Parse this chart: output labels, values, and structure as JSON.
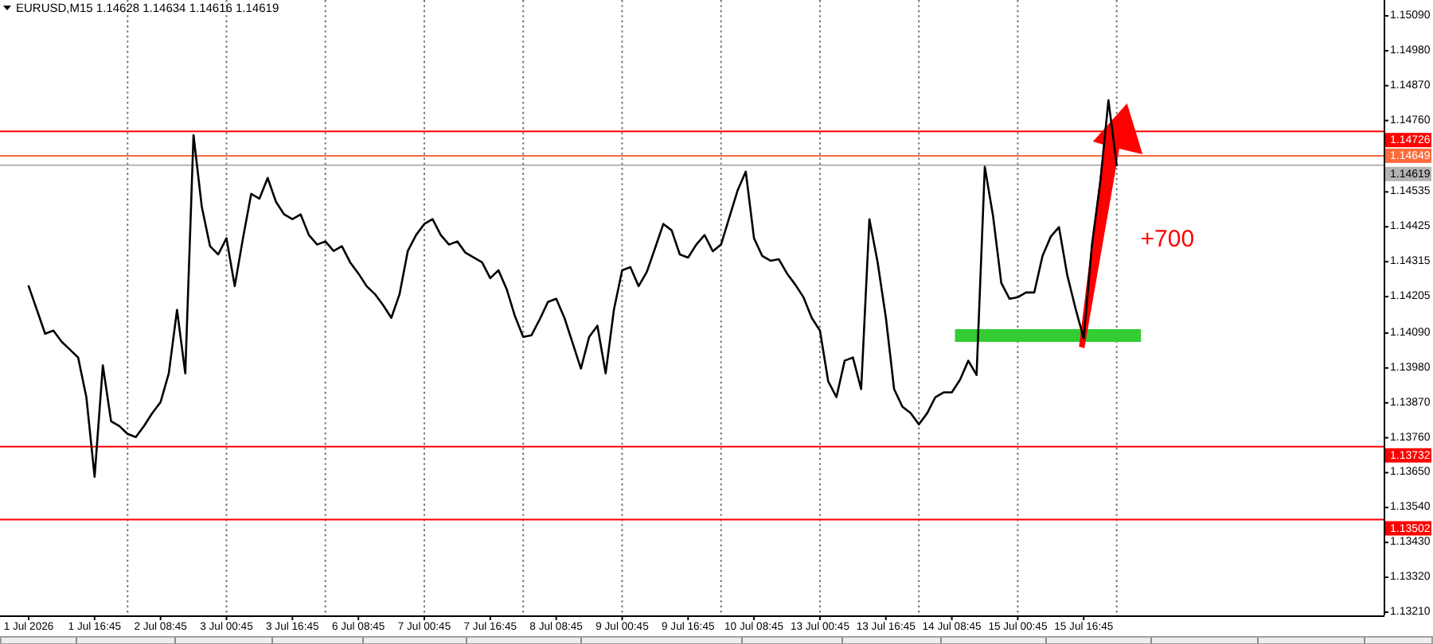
{
  "chart_data": {
    "type": "line",
    "title": "EURUSD,M15 1.14628 1.14634 1.14616 1.14619",
    "categories": [
      "1 Jul 2026",
      null,
      null,
      null,
      null,
      null,
      null,
      null,
      "1 Jul 16:45",
      null,
      null,
      null,
      null,
      null,
      null,
      null,
      "2 Jul 08:45",
      null,
      null,
      null,
      null,
      null,
      null,
      null,
      "3 Jul 00:45",
      null,
      null,
      null,
      null,
      null,
      null,
      null,
      "3 Jul 16:45",
      null,
      null,
      null,
      null,
      null,
      null,
      null,
      "6 Jul 08:45",
      null,
      null,
      null,
      null,
      null,
      null,
      null,
      "7 Jul 00:45",
      null,
      null,
      null,
      null,
      null,
      null,
      null,
      "7 Jul 16:45",
      null,
      null,
      null,
      null,
      null,
      null,
      null,
      "8 Jul 08:45",
      null,
      null,
      null,
      null,
      null,
      null,
      null,
      "9 Jul 00:45",
      null,
      null,
      null,
      null,
      null,
      null,
      null,
      "9 Jul 16:45",
      null,
      null,
      null,
      null,
      null,
      null,
      null,
      "10 Jul 08:45",
      null,
      null,
      null,
      null,
      null,
      null,
      null,
      "13 Jul 00:45",
      null,
      null,
      null,
      null,
      null,
      null,
      null,
      "13 Jul 16:45",
      null,
      null,
      null,
      null,
      null,
      null,
      null,
      "14 Jul 08:45",
      null,
      null,
      null,
      null,
      null,
      null,
      null,
      "15 Jul 00:45",
      null,
      null,
      null,
      null,
      null,
      null,
      null,
      "15 Jul 16:45",
      null,
      null,
      null,
      null,
      null,
      null,
      null,
      null,
      null,
      null,
      null,
      null,
      null,
      null,
      null,
      null,
      null,
      null,
      null,
      null,
      null,
      null,
      null,
      null,
      null,
      null,
      null,
      null,
      null,
      null,
      null,
      null,
      null,
      null,
      null,
      null
    ],
    "ylim": [
      1.132,
      1.1514
    ],
    "yticks": [
      {
        "value": 1.1509,
        "label": "1.15090"
      },
      {
        "value": 1.1498,
        "label": "1.14980"
      },
      {
        "value": 1.1487,
        "label": "1.14870"
      },
      {
        "value": 1.1476,
        "label": "1.14760"
      },
      {
        "value": 1.14535,
        "label": "1.14535"
      },
      {
        "value": 1.14425,
        "label": "1.14425"
      },
      {
        "value": 1.14315,
        "label": "1.14315"
      },
      {
        "value": 1.14205,
        "label": "1.14205"
      },
      {
        "value": 1.1409,
        "label": "1.14090"
      },
      {
        "value": 1.1398,
        "label": "1.13980"
      },
      {
        "value": 1.1387,
        "label": "1.13870"
      },
      {
        "value": 1.1376,
        "label": "1.13760"
      },
      {
        "value": 1.1365,
        "label": "1.13650"
      },
      {
        "value": 1.1354,
        "label": "1.13540"
      },
      {
        "value": 1.1343,
        "label": "1.13430"
      },
      {
        "value": 1.1332,
        "label": "1.13320"
      },
      {
        "value": 1.1321,
        "label": "1.13210"
      }
    ],
    "series": [
      {
        "color": "#000000",
        "values": [
          1.14238,
          1.14163,
          1.14088,
          1.14098,
          1.14063,
          1.14038,
          1.14013,
          1.13888,
          1.13637,
          1.13988,
          1.13812,
          1.13797,
          1.13772,
          1.13762,
          1.13797,
          1.13838,
          1.13872,
          1.13963,
          1.14163,
          1.13963,
          1.14714,
          1.14489,
          1.14364,
          1.14338,
          1.14389,
          1.14238,
          1.14389,
          1.14529,
          1.14514,
          1.14579,
          1.14504,
          1.14464,
          1.14449,
          1.14464,
          1.14399,
          1.14369,
          1.14379,
          1.14349,
          1.14364,
          1.14313,
          1.14278,
          1.14238,
          1.14213,
          1.14178,
          1.14138,
          1.14213,
          1.14349,
          1.14399,
          1.14434,
          1.14449,
          1.14399,
          1.14369,
          1.14379,
          1.14343,
          1.14328,
          1.14313,
          1.14263,
          1.14288,
          1.14228,
          1.14143,
          1.14078,
          1.14083,
          1.14133,
          1.14188,
          1.14198,
          1.14138,
          1.14058,
          1.13978,
          1.14078,
          1.14113,
          1.13963,
          1.14163,
          1.14288,
          1.14298,
          1.14238,
          1.14283,
          1.14358,
          1.14434,
          1.14414,
          1.14338,
          1.14328,
          1.14369,
          1.14399,
          1.14348,
          1.14369,
          1.14454,
          1.14539,
          1.14599,
          1.14389,
          1.14333,
          1.14318,
          1.14323,
          1.14278,
          1.14243,
          1.14203,
          1.14138,
          1.14098,
          1.13938,
          1.13888,
          1.14003,
          1.14013,
          1.13913,
          1.14449,
          1.14313,
          1.14138,
          1.13913,
          1.13858,
          1.13838,
          1.13802,
          1.13837,
          1.13888,
          1.13903,
          1.13903,
          1.13943,
          1.14003,
          1.13958,
          1.14614,
          1.14459,
          1.14248,
          1.14198,
          1.14203,
          1.14218,
          1.14218,
          1.14333,
          1.14394,
          1.14424,
          1.14273,
          1.14168,
          1.14073,
          1.14369,
          1.14564,
          1.14824,
          1.14619,
          null,
          null,
          null,
          null,
          null,
          null,
          null,
          null,
          null,
          null,
          null,
          null,
          null,
          null,
          null,
          null,
          null,
          null,
          null,
          null,
          null,
          null,
          null,
          null,
          null,
          null,
          null,
          null,
          null,
          null,
          null,
          null
        ]
      }
    ],
    "ref_lines": [
      {
        "axis": "y",
        "value": 1.14726,
        "label": "1.14726",
        "color": "#ff0000"
      },
      {
        "axis": "y",
        "value": 1.14649,
        "label": "1.14649",
        "color": "#ff6a3a"
      },
      {
        "axis": "y",
        "value": 1.14619,
        "label": "1.14619",
        "color": "#b4b4b4"
      },
      {
        "axis": "y",
        "value": 1.13732,
        "label": "1.13732",
        "color": "#ff0000"
      },
      {
        "axis": "y",
        "value": 1.13502,
        "label": "1.13502",
        "color": "#ff0000"
      }
    ],
    "annotations": [
      "+700"
    ]
  }
}
